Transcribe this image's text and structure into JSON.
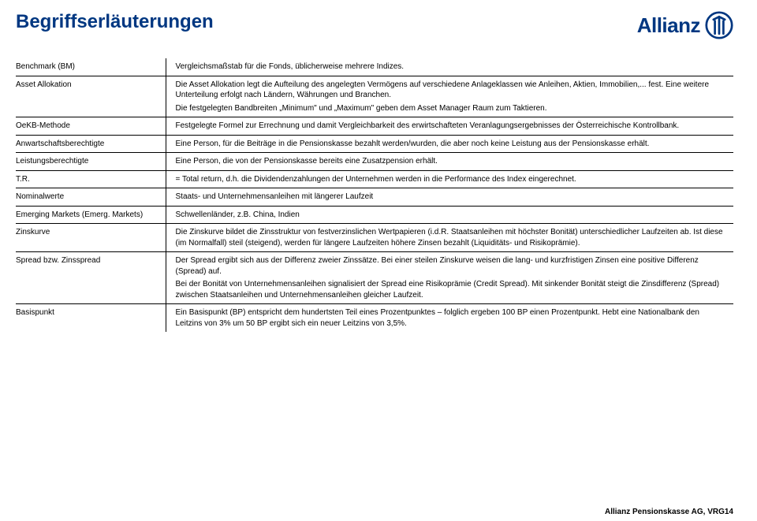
{
  "title": "Begriffserläuterungen",
  "logo": {
    "text": "Allianz"
  },
  "footer": "Allianz Pensionskasse AG, VRG14",
  "rows": [
    {
      "term": "Benchmark (BM)",
      "defs": [
        "Vergleichsmaßstab für die Fonds, üblicherweise mehrere Indizes."
      ]
    },
    {
      "term": "Asset Allokation",
      "defs": [
        "Die Asset Allokation legt die Aufteilung des angelegten Vermögens auf verschiedene Anlageklassen wie Anleihen, Aktien, Immobilien,... fest. Eine weitere Unterteilung erfolgt nach Ländern, Währungen und Branchen.",
        "Die festgelegten Bandbreiten „Minimum\" und „Maximum\" geben dem Asset Manager Raum zum Taktieren."
      ]
    },
    {
      "term": "OeKB-Methode",
      "defs": [
        "Festgelegte Formel zur Errechnung und damit Vergleichbarkeit des erwirtschafteten Veranlagungsergebnisses der Österreichische Kontrollbank."
      ]
    },
    {
      "term": "Anwartschaftsberechtigte",
      "defs": [
        "Eine Person, für die Beiträge in die Pensionskasse bezahlt werden/wurden, die aber noch keine Leistung aus der Pensionskasse erhält."
      ]
    },
    {
      "term": "Leistungsberechtigte",
      "defs": [
        "Eine Person, die von der Pensionskasse bereits eine Zusatzpension erhält."
      ]
    },
    {
      "term": "T.R.",
      "defs": [
        "= Total return, d.h. die Dividendenzahlungen der Unternehmen werden in die Performance des Index eingerechnet."
      ]
    },
    {
      "term": "Nominalwerte",
      "defs": [
        "Staats- und Unternehmensanleihen mit längerer Laufzeit"
      ]
    },
    {
      "term": "Emerging Markets (Emerg. Markets)",
      "defs": [
        "Schwellenländer, z.B. China, Indien"
      ]
    },
    {
      "term": "Zinskurve",
      "defs": [
        "Die Zinskurve bildet die Zinsstruktur von festverzinslichen Wertpapieren (i.d.R. Staatsanleihen mit höchster Bonität) unterschiedlicher Laufzeiten ab. Ist diese (im Normalfall) steil (steigend), werden für längere Laufzeiten höhere Zinsen bezahlt (Liquiditäts- und Risikoprämie)."
      ]
    },
    {
      "term": "Spread bzw. Zinsspread",
      "defs": [
        "Der Spread ergibt sich aus der Differenz zweier Zinssätze. Bei einer steilen Zinskurve weisen die lang- und kurzfristigen Zinsen eine positive Differenz (Spread) auf.",
        "Bei der Bonität von Unternehmensanleihen signalisiert der Spread eine Risikoprämie (Credit Spread). Mit sinkender Bonität steigt die Zinsdifferenz (Spread) zwischen Staatsanleihen und Unternehmensanleihen gleicher Laufzeit."
      ]
    },
    {
      "term": "Basispunkt",
      "defs": [
        "Ein Basispunkt (BP) entspricht dem hundertsten Teil eines Prozentpunktes – folglich ergeben 100 BP einen Prozentpunkt. Hebt eine Nationalbank den Leitzins von 3% um 50 BP ergibt sich ein neuer Leitzins von 3,5%."
      ]
    }
  ]
}
